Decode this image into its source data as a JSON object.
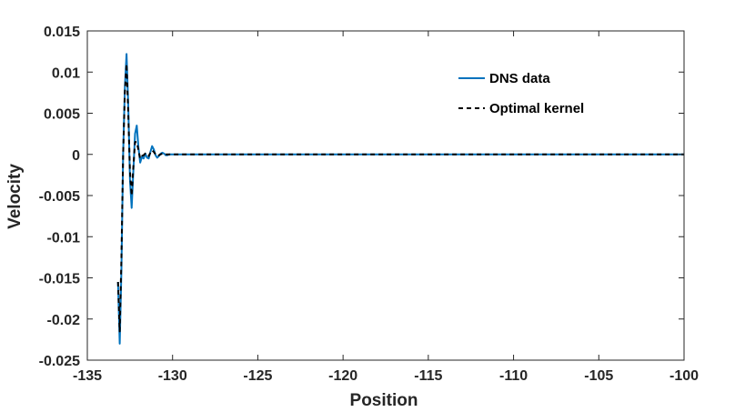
{
  "chart_data": {
    "type": "line",
    "title": "",
    "xlabel": "Position",
    "ylabel": "Velocity",
    "xlim": [
      -135,
      -100
    ],
    "ylim": [
      -0.025,
      0.015
    ],
    "xticks": [
      -135,
      -130,
      -125,
      -120,
      -115,
      -110,
      -105,
      -100
    ],
    "xtick_labels": [
      "-135",
      "-130",
      "-125",
      "-120",
      "-115",
      "-110",
      "-105",
      "-100"
    ],
    "yticks": [
      0.015,
      0.01,
      0.005,
      0,
      -0.005,
      -0.01,
      -0.015,
      -0.02,
      -0.025
    ],
    "ytick_labels": [
      "0.015",
      "0.01",
      "0.005",
      "0",
      "-0.005",
      "-0.01",
      "-0.015",
      "-0.02",
      "-0.025"
    ],
    "grid": false,
    "legend_position": "top-right",
    "series": [
      {
        "name": "DNS data",
        "color": "#0072BD",
        "style": "solid",
        "x": [
          -133.2,
          -133.1,
          -133.0,
          -132.9,
          -132.8,
          -132.7,
          -132.6,
          -132.5,
          -132.4,
          -132.3,
          -132.2,
          -132.1,
          -132.0,
          -131.9,
          -131.8,
          -131.7,
          -131.6,
          -131.5,
          -131.4,
          -131.3,
          -131.2,
          -131.1,
          -131.0,
          -130.9,
          -130.8,
          -130.7,
          -130.6,
          -130.5,
          -130.4,
          -130.3,
          -130.2,
          -130.0,
          -129.5,
          -129.0,
          -100.0
        ],
        "y": [
          -0.0155,
          -0.023,
          -0.014,
          0.0,
          0.008,
          0.0122,
          0.006,
          -0.003,
          -0.0065,
          -0.002,
          0.0025,
          0.0035,
          0.0008,
          -0.001,
          -0.0003,
          -0.0005,
          0.0001,
          -0.0004,
          -0.0005,
          0.0003,
          0.001,
          0.0006,
          -0.0001,
          -0.0004,
          -0.0002,
          0.0001,
          0.0002,
          0.0001,
          -0.0001,
          -0.0001,
          0.0,
          0.0,
          0.0,
          0.0,
          0.0
        ]
      },
      {
        "name": "Optimal kernel",
        "color": "#000000",
        "style": "dashed",
        "x": [
          -133.2,
          -133.1,
          -133.0,
          -132.9,
          -132.8,
          -132.7,
          -132.6,
          -132.5,
          -132.4,
          -132.3,
          -132.2,
          -132.1,
          -132.0,
          -131.9,
          -131.8,
          -131.7,
          -131.6,
          -131.5,
          -131.4,
          -131.3,
          -131.2,
          -131.1,
          -131.0,
          -130.9,
          -130.8,
          -130.7,
          -130.6,
          -130.5,
          -130.4,
          -130.3,
          -130.2,
          -130.0,
          -129.5,
          -129.0,
          -100.0
        ],
        "y": [
          -0.0155,
          -0.0215,
          -0.0125,
          0.0,
          0.0075,
          0.011,
          0.005,
          -0.002,
          -0.005,
          -0.0015,
          0.0015,
          0.0015,
          0.0005,
          -0.0005,
          -0.0002,
          -0.0001,
          0.0001,
          -0.0002,
          -0.0002,
          0.0002,
          0.0005,
          0.0003,
          0.0,
          -0.0002,
          -0.0001,
          0.0,
          0.0001,
          0.0,
          0.0,
          0.0,
          0.0,
          0.0,
          0.0,
          0.0,
          0.0
        ]
      }
    ]
  }
}
